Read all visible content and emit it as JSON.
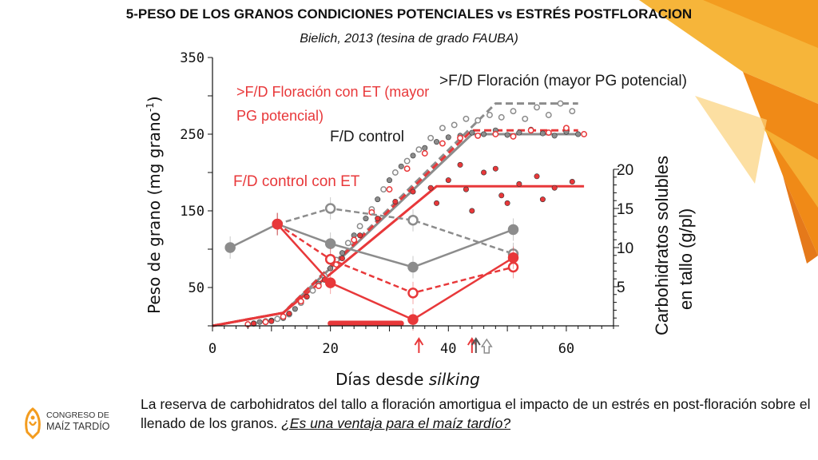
{
  "title": "5-PESO DE LOS GRANOS CONDICIONES POTENCIALES vs ESTRÉS POSTFLORACION",
  "subtitle": "Bielich, 2013 (tesina de grado FAUBA)",
  "caption": {
    "text": "La reserva de carbohidratos del tallo a floración amortigua el impacto de un estrés en post-floración sobre el llenado de los granos. ",
    "question": "¿Es una ventaja para el maíz tardío?"
  },
  "logo": {
    "line1": "CONGRESO DE",
    "line2": "MAÍZ TARDÍO"
  },
  "colors": {
    "red": "#e8383a",
    "gray": "#8c8c8c",
    "dark": "#555555",
    "accent": "#f39c1f"
  },
  "chart_data": {
    "type": "scatter",
    "xlabel_plain": "Días desde ",
    "xlabel_italic": "silking",
    "ylabel": "Peso de grano (mg grano-1)",
    "ylabel_main": "Peso de grano (mg grano",
    "ylabel_sup": "-1",
    "ylabel_close": ")",
    "y2label_line1": "Carbohidratos solubles",
    "y2label_line2": "en tallo (g/pl)",
    "xlim": [
      0,
      68
    ],
    "ylim": [
      0,
      350
    ],
    "y2lim": [
      0,
      20
    ],
    "x_ticks": [
      "0",
      "20",
      "40",
      "60"
    ],
    "y_ticks": [
      "50",
      "150",
      "250",
      "350"
    ],
    "y2_ticks": [
      "5",
      "10",
      "15",
      "20"
    ],
    "annotations": {
      "mayor_pg": ">F/D Floración (mayor PG potencial)",
      "et_mayor_pg_1": ">F/D Floración con ET (mayor",
      "et_mayor_pg_2": "PG potencial)",
      "control": "F/D control",
      "control_et": "F/D control con ET"
    },
    "stress_period": [
      20,
      32
    ],
    "arrows": [
      {
        "x": 35,
        "color": "red",
        "style": "open"
      },
      {
        "x": 44,
        "color": "red",
        "style": "filled"
      },
      {
        "x": 44,
        "color": "dark",
        "style": "open"
      },
      {
        "x": 46.5,
        "color": "gray",
        "style": "hollow"
      }
    ],
    "series": [
      {
        "line": "mayor_pg",
        "kind": "fit",
        "color": "gray",
        "dash": true,
        "points": [
          [
            0,
            0
          ],
          [
            12,
            17
          ],
          [
            48,
            290
          ],
          [
            62,
            290
          ]
        ]
      },
      {
        "line": "control",
        "kind": "fit",
        "color": "gray",
        "dash": false,
        "points": [
          [
            0,
            0
          ],
          [
            12,
            17
          ],
          [
            44,
            250
          ],
          [
            62,
            250
          ]
        ]
      },
      {
        "line": "et_mayor_pg",
        "kind": "fit",
        "color": "red",
        "dash": true,
        "points": [
          [
            0,
            0
          ],
          [
            12,
            17
          ],
          [
            44,
            255
          ],
          [
            62,
            255
          ]
        ]
      },
      {
        "line": "control_et",
        "kind": "fit",
        "color": "red",
        "dash": false,
        "points": [
          [
            0,
            0
          ],
          [
            12,
            17
          ],
          [
            38,
            182
          ],
          [
            63,
            182
          ]
        ]
      },
      {
        "line": "carb_mayor_pg",
        "kind": "carb",
        "color": "gray",
        "dash": true,
        "open": true,
        "points": [
          [
            11,
            13
          ],
          [
            20,
            15
          ],
          [
            34,
            13.5
          ],
          [
            51,
            9.2
          ]
        ]
      },
      {
        "line": "carb_control",
        "kind": "carb",
        "color": "gray",
        "dash": false,
        "open": false,
        "points": [
          [
            3,
            10
          ],
          [
            11,
            13
          ],
          [
            20,
            10.5
          ],
          [
            34,
            7.5
          ],
          [
            51,
            12.3
          ]
        ]
      },
      {
        "line": "carb_et_mayor_pg",
        "kind": "carb",
        "color": "red",
        "dash": true,
        "open": true,
        "points": [
          [
            11,
            13
          ],
          [
            20,
            8.5
          ],
          [
            34,
            4.2
          ],
          [
            51,
            7.5
          ]
        ]
      },
      {
        "line": "carb_control_et",
        "kind": "carb",
        "color": "red",
        "dash": false,
        "open": false,
        "points": [
          [
            11,
            13
          ],
          [
            20,
            5.5
          ],
          [
            34,
            0.8
          ],
          [
            51,
            8.7
          ]
        ]
      },
      {
        "line": "obs_gray_filled",
        "kind": "scatter",
        "color": "gray",
        "open": false,
        "points": [
          [
            6,
            2
          ],
          [
            8,
            5
          ],
          [
            10,
            7
          ],
          [
            12,
            10
          ],
          [
            14,
            22
          ],
          [
            16,
            38
          ],
          [
            18,
            55
          ],
          [
            20,
            75
          ],
          [
            22,
            95
          ],
          [
            24,
            118
          ],
          [
            26,
            140
          ],
          [
            28,
            165
          ],
          [
            30,
            190
          ],
          [
            32,
            208
          ],
          [
            34,
            222
          ],
          [
            36,
            232
          ],
          [
            38,
            240
          ],
          [
            40,
            246
          ],
          [
            42,
            248
          ],
          [
            44,
            252
          ],
          [
            46,
            250
          ],
          [
            48,
            255
          ],
          [
            50,
            249
          ],
          [
            52,
            252
          ],
          [
            54,
            256
          ],
          [
            56,
            251
          ],
          [
            58,
            248
          ],
          [
            60,
            253
          ],
          [
            62,
            250
          ]
        ]
      },
      {
        "line": "obs_gray_open",
        "kind": "scatter",
        "color": "gray",
        "open": true,
        "points": [
          [
            7,
            3
          ],
          [
            9,
            6
          ],
          [
            11,
            9
          ],
          [
            13,
            15
          ],
          [
            15,
            30
          ],
          [
            17,
            46
          ],
          [
            19,
            65
          ],
          [
            21,
            86
          ],
          [
            23,
            108
          ],
          [
            25,
            130
          ],
          [
            27,
            152
          ],
          [
            29,
            178
          ],
          [
            31,
            200
          ],
          [
            33,
            215
          ],
          [
            35,
            230
          ],
          [
            37,
            245
          ],
          [
            39,
            258
          ],
          [
            41,
            262
          ],
          [
            43,
            270
          ],
          [
            45,
            268
          ],
          [
            47,
            275
          ],
          [
            49,
            272
          ],
          [
            51,
            280
          ],
          [
            53,
            270
          ],
          [
            55,
            285
          ],
          [
            57,
            275
          ],
          [
            59,
            290
          ],
          [
            61,
            280
          ]
        ]
      },
      {
        "line": "obs_red_open",
        "kind": "scatter",
        "color": "red",
        "open": true,
        "points": [
          [
            6,
            2
          ],
          [
            9,
            5
          ],
          [
            12,
            12
          ],
          [
            15,
            32
          ],
          [
            18,
            52
          ],
          [
            21,
            80
          ],
          [
            24,
            112
          ],
          [
            27,
            148
          ],
          [
            30,
            178
          ],
          [
            33,
            205
          ],
          [
            36,
            225
          ],
          [
            39,
            238
          ],
          [
            42,
            245
          ],
          [
            45,
            248
          ],
          [
            48,
            250
          ],
          [
            51,
            247
          ],
          [
            54,
            255
          ],
          [
            57,
            252
          ],
          [
            60,
            258
          ],
          [
            63,
            250
          ]
        ]
      },
      {
        "line": "obs_red_filled",
        "kind": "scatter",
        "color": "red",
        "open": false,
        "points": [
          [
            7,
            3
          ],
          [
            10,
            6
          ],
          [
            13,
            16
          ],
          [
            16,
            38
          ],
          [
            19,
            60
          ],
          [
            22,
            88
          ],
          [
            25,
            118
          ],
          [
            28,
            140
          ],
          [
            31,
            162
          ],
          [
            34,
            175
          ],
          [
            37,
            180
          ],
          [
            40,
            190
          ],
          [
            43,
            178
          ],
          [
            46,
            200
          ],
          [
            49,
            170
          ],
          [
            52,
            185
          ],
          [
            55,
            195
          ],
          [
            58,
            180
          ],
          [
            61,
            188
          ],
          [
            38,
            160
          ],
          [
            44,
            150
          ],
          [
            50,
            160
          ],
          [
            56,
            165
          ],
          [
            42,
            210
          ],
          [
            48,
            205
          ]
        ]
      }
    ]
  }
}
